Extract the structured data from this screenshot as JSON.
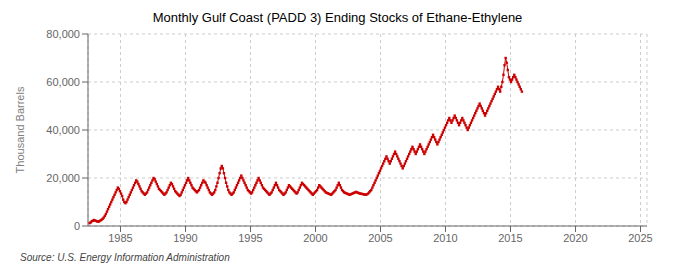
{
  "chart_data": {
    "type": "line",
    "title": "Monthly Gulf Coast (PADD 3) Ending Stocks of Ethane-Ethylene",
    "ylabel": "Thousand Barrels",
    "source": "Source: U.S. Energy Information Administration",
    "color": "#cc0000",
    "marker": "square",
    "grid": true,
    "xlim": [
      1982.5,
      2025.5
    ],
    "xticks": [
      1985,
      1990,
      1995,
      2000,
      2005,
      2010,
      2015,
      2020,
      2025
    ],
    "ylim": [
      0,
      80000
    ],
    "yticks": [
      0,
      {
        "value": 20000,
        "label": "20,000"
      },
      {
        "value": 40000,
        "label": "40,000"
      },
      {
        "value": 60000,
        "label": "60,000"
      },
      {
        "value": 80000,
        "label": "80,000"
      }
    ],
    "x": [
      1982.625,
      1982.7083,
      1982.7917,
      1982.875,
      1982.9583,
      1983.0417,
      1983.125,
      1983.2083,
      1983.2917,
      1983.375,
      1983.4583,
      1983.5417,
      1983.625,
      1983.7083,
      1983.7917,
      1983.875,
      1983.9583,
      1984.0417,
      1984.125,
      1984.2083,
      1984.2917,
      1984.375,
      1984.4583,
      1984.5417,
      1984.625,
      1984.7083,
      1984.7917,
      1984.875,
      1984.9583,
      1985.0417,
      1985.125,
      1985.2083,
      1985.2917,
      1985.375,
      1985.4583,
      1985.5417,
      1985.625,
      1985.7083,
      1985.7917,
      1985.875,
      1985.9583,
      1986.0417,
      1986.125,
      1986.2083,
      1986.2917,
      1986.375,
      1986.4583,
      1986.5417,
      1986.625,
      1986.7083,
      1986.7917,
      1986.875,
      1986.9583,
      1987.0417,
      1987.125,
      1987.2083,
      1987.2917,
      1987.375,
      1987.4583,
      1987.5417,
      1987.625,
      1987.7083,
      1987.7917,
      1987.875,
      1987.9583,
      1988.0417,
      1988.125,
      1988.2083,
      1988.2917,
      1988.375,
      1988.4583,
      1988.5417,
      1988.625,
      1988.7083,
      1988.7917,
      1988.875,
      1988.9583,
      1989.0417,
      1989.125,
      1989.2083,
      1989.2917,
      1989.375,
      1989.4583,
      1989.5417,
      1989.625,
      1989.7083,
      1989.7917,
      1989.875,
      1989.9583,
      1990.0417,
      1990.125,
      1990.2083,
      1990.2917,
      1990.375,
      1990.4583,
      1990.5417,
      1990.625,
      1990.7083,
      1990.7917,
      1990.875,
      1990.9583,
      1991.0417,
      1991.125,
      1991.2083,
      1991.2917,
      1991.375,
      1991.4583,
      1991.5417,
      1991.625,
      1991.7083,
      1991.7917,
      1991.875,
      1991.9583,
      1992.0417,
      1992.125,
      1992.2083,
      1992.2917,
      1992.375,
      1992.4583,
      1992.5417,
      1992.625,
      1992.7083,
      1992.7917,
      1992.875,
      1992.9583,
      1993.0417,
      1993.125,
      1993.2083,
      1993.2917,
      1993.375,
      1993.4583,
      1993.5417,
      1993.625,
      1993.7083,
      1993.7917,
      1993.875,
      1993.9583,
      1994.0417,
      1994.125,
      1994.2083,
      1994.2917,
      1994.375,
      1994.4583,
      1994.5417,
      1994.625,
      1994.7083,
      1994.7917,
      1994.875,
      1994.9583,
      1995.0417,
      1995.125,
      1995.2083,
      1995.2917,
      1995.375,
      1995.4583,
      1995.5417,
      1995.625,
      1995.7083,
      1995.7917,
      1995.875,
      1995.9583,
      1996.0417,
      1996.125,
      1996.2083,
      1996.2917,
      1996.375,
      1996.4583,
      1996.5417,
      1996.625,
      1996.7083,
      1996.7917,
      1996.875,
      1996.9583,
      1997.0417,
      1997.125,
      1997.2083,
      1997.2917,
      1997.375,
      1997.4583,
      1997.5417,
      1997.625,
      1997.7083,
      1997.7917,
      1997.875,
      1997.9583,
      1998.0417,
      1998.125,
      1998.2083,
      1998.2917,
      1998.375,
      1998.4583,
      1998.5417,
      1998.625,
      1998.7083,
      1998.7917,
      1998.875,
      1998.9583,
      1999.0417,
      1999.125,
      1999.2083,
      1999.2917,
      1999.375,
      1999.4583,
      1999.5417,
      1999.625,
      1999.7083,
      1999.7917,
      1999.875,
      1999.9583,
      2000.0417,
      2000.125,
      2000.2083,
      2000.2917,
      2000.375,
      2000.4583,
      2000.5417,
      2000.625,
      2000.7083,
      2000.7917,
      2000.875,
      2000.9583,
      2001.0417,
      2001.125,
      2001.2083,
      2001.2917,
      2001.375,
      2001.4583,
      2001.5417,
      2001.625,
      2001.7083,
      2001.7917,
      2001.875,
      2001.9583,
      2002.0417,
      2002.125,
      2002.2083,
      2002.2917,
      2002.375,
      2002.4583,
      2002.5417,
      2002.625,
      2002.7083,
      2002.7917,
      2002.875,
      2002.9583,
      2003.0417,
      2003.125,
      2003.2083,
      2003.2917,
      2003.375,
      2003.4583,
      2003.5417,
      2003.625,
      2003.7083,
      2003.7917,
      2003.875,
      2003.9583,
      2004.0417,
      2004.125,
      2004.2083,
      2004.2917,
      2004.375,
      2004.4583,
      2004.5417,
      2004.625,
      2004.7083,
      2004.7917,
      2004.875,
      2004.9583,
      2005.0417,
      2005.125,
      2005.2083,
      2005.2917,
      2005.375,
      2005.4583,
      2005.5417,
      2005.625,
      2005.7083,
      2005.7917,
      2005.875,
      2005.9583,
      2006.0417,
      2006.125,
      2006.2083,
      2006.2917,
      2006.375,
      2006.4583,
      2006.5417,
      2006.625,
      2006.7083,
      2006.7917,
      2006.875,
      2006.9583,
      2007.0417,
      2007.125,
      2007.2083,
      2007.2917,
      2007.375,
      2007.4583,
      2007.5417,
      2007.625,
      2007.7083,
      2007.7917,
      2007.875,
      2007.9583,
      2008.0417,
      2008.125,
      2008.2083,
      2008.2917,
      2008.375,
      2008.4583,
      2008.5417,
      2008.625,
      2008.7083,
      2008.7917,
      2008.875,
      2008.9583,
      2009.0417,
      2009.125,
      2009.2083,
      2009.2917,
      2009.375,
      2009.4583,
      2009.5417,
      2009.625,
      2009.7083,
      2009.7917,
      2009.875,
      2009.9583,
      2010.0417,
      2010.125,
      2010.2083,
      2010.2917,
      2010.375,
      2010.4583,
      2010.5417,
      2010.625,
      2010.7083,
      2010.7917,
      2010.875,
      2010.9583,
      2011.0417,
      2011.125,
      2011.2083,
      2011.2917,
      2011.375,
      2011.4583,
      2011.5417,
      2011.625,
      2011.7083,
      2011.7917,
      2011.875,
      2011.9583,
      2012.0417,
      2012.125,
      2012.2083,
      2012.2917,
      2012.375,
      2012.4583,
      2012.5417,
      2012.625,
      2012.7083,
      2012.7917,
      2012.875,
      2012.9583,
      2013.0417,
      2013.125,
      2013.2083,
      2013.2917,
      2013.375,
      2013.4583,
      2013.5417,
      2013.625,
      2013.7083,
      2013.7917,
      2013.875,
      2013.9583,
      2014.0417,
      2014.125,
      2014.2083,
      2014.2917,
      2014.375,
      2014.4583,
      2014.5417,
      2014.625,
      2014.7083,
      2014.7917,
      2014.875,
      2014.9583,
      2015.0417,
      2015.125,
      2015.2083,
      2015.2917,
      2015.375,
      2015.4583,
      2015.5417,
      2015.625,
      2015.7083,
      2015.7917,
      2015.875
    ],
    "values": [
      1200,
      1500,
      2000,
      2200,
      2500,
      2300,
      2100,
      1900,
      1800,
      2000,
      2300,
      2600,
      3000,
      3500,
      4200,
      5000,
      6000,
      7000,
      8000,
      9000,
      10000,
      11000,
      12000,
      13000,
      14000,
      15000,
      16000,
      15500,
      14500,
      13500,
      12500,
      11000,
      10000,
      9500,
      10000,
      11000,
      12000,
      13000,
      14000,
      15000,
      16000,
      17000,
      18000,
      19000,
      18500,
      17500,
      16500,
      15500,
      14500,
      14000,
      13500,
      13000,
      13500,
      14000,
      15000,
      16000,
      17000,
      18000,
      19000,
      20000,
      19500,
      18500,
      17500,
      16500,
      15500,
      15000,
      14500,
      14000,
      13500,
      13000,
      13500,
      14000,
      15000,
      16000,
      17000,
      18000,
      17500,
      16500,
      15500,
      14500,
      14000,
      13500,
      13000,
      12500,
      13000,
      14000,
      15000,
      16000,
      17000,
      18000,
      19000,
      20000,
      19000,
      18000,
      17000,
      16000,
      15500,
      15000,
      14500,
      14000,
      14500,
      15000,
      16000,
      17000,
      18000,
      19000,
      18500,
      18000,
      17000,
      16000,
      15000,
      14000,
      13500,
      13000,
      13500,
      14000,
      15000,
      16500,
      18000,
      20000,
      22000,
      24000,
      25000,
      24000,
      22000,
      20000,
      18000,
      16500,
      15000,
      14000,
      13500,
      13000,
      13500,
      14000,
      15000,
      16000,
      17000,
      18000,
      19000,
      20000,
      21000,
      20000,
      19000,
      18000,
      17000,
      16000,
      15000,
      14500,
      14000,
      13500,
      14000,
      15000,
      16000,
      17000,
      18000,
      19000,
      20000,
      19000,
      18000,
      17000,
      16000,
      15500,
      15000,
      14500,
      14000,
      13500,
      13000,
      13500,
      14000,
      15000,
      16000,
      17000,
      18000,
      17000,
      16000,
      15000,
      14500,
      14000,
      13500,
      13000,
      13500,
      14000,
      15000,
      16000,
      17000,
      16500,
      16000,
      15500,
      15000,
      14500,
      14000,
      13500,
      14000,
      15000,
      16000,
      17000,
      18000,
      17500,
      17000,
      16500,
      16000,
      15500,
      15000,
      14500,
      14000,
      13500,
      13000,
      13500,
      14000,
      14500,
      15000,
      16000,
      17000,
      16500,
      16000,
      15500,
      15000,
      14500,
      14000,
      13800,
      13600,
      13400,
      13200,
      13000,
      13500,
      14000,
      14500,
      15000,
      16000,
      17000,
      18000,
      17000,
      16000,
      15000,
      14500,
      14000,
      13800,
      13600,
      13400,
      13200,
      13000,
      13200,
      13400,
      13600,
      13800,
      14000,
      14200,
      14000,
      13800,
      13600,
      13500,
      13400,
      13300,
      13200,
      13100,
      13000,
      13200,
      13500,
      14000,
      14500,
      15000,
      16000,
      17000,
      18000,
      19000,
      20000,
      21000,
      22000,
      23000,
      24000,
      25000,
      26000,
      27000,
      28000,
      29000,
      28000,
      27000,
      26000,
      27000,
      28000,
      29000,
      30000,
      31000,
      30000,
      29000,
      28000,
      27000,
      26000,
      25000,
      24000,
      25000,
      26000,
      27000,
      28000,
      29000,
      30000,
      31000,
      32000,
      33000,
      32000,
      31000,
      30000,
      31000,
      32000,
      33000,
      34000,
      33000,
      32000,
      31000,
      30000,
      31000,
      32000,
      33000,
      34000,
      35000,
      36000,
      37000,
      38000,
      37000,
      36000,
      35000,
      34000,
      35000,
      36000,
      37000,
      38000,
      39000,
      40000,
      41000,
      42000,
      43000,
      44000,
      45000,
      44000,
      43000,
      44000,
      45000,
      46000,
      45000,
      44000,
      43000,
      42000,
      43000,
      44000,
      45000,
      44000,
      43000,
      42000,
      41000,
      40000,
      41000,
      42000,
      43000,
      44000,
      45000,
      46000,
      47000,
      48000,
      49000,
      50000,
      51000,
      50000,
      49000,
      48000,
      47000,
      46000,
      47000,
      48000,
      49000,
      50000,
      51000,
      52000,
      53000,
      54000,
      55000,
      56000,
      57000,
      58000,
      57000,
      56000,
      58000,
      60000,
      63000,
      67000,
      70000,
      68000,
      65000,
      62000,
      61000,
      60000,
      61000,
      62000,
      63000,
      62000,
      61000,
      60000,
      59000,
      58000,
      57000,
      56000
    ]
  }
}
